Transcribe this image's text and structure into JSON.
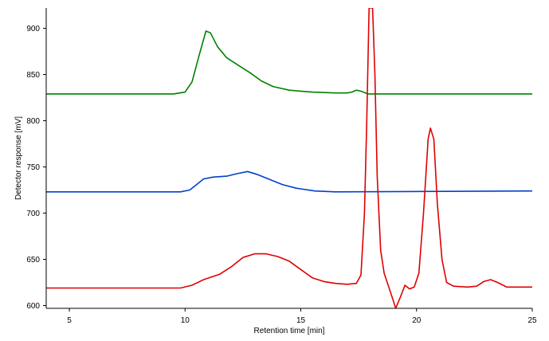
{
  "chart_data": {
    "type": "line",
    "title": "",
    "xlabel": "Retention time [min]",
    "ylabel": "Detector response [mV]",
    "xlim": [
      4,
      25
    ],
    "ylim": [
      597,
      922
    ],
    "x_ticks": [
      5,
      10,
      15,
      20,
      25
    ],
    "y_ticks": [
      600,
      650,
      700,
      750,
      800,
      850,
      900
    ],
    "x_tick_labels": [
      "5",
      "10",
      "15",
      "20",
      "25"
    ],
    "y_tick_labels": [
      "600",
      "650",
      "700",
      "750",
      "800",
      "850",
      "900"
    ],
    "grid": false,
    "legend": "none",
    "series": [
      {
        "color": "#008000",
        "points": [
          [
            4,
            829
          ],
          [
            9.5,
            829
          ],
          [
            10.0,
            831
          ],
          [
            10.3,
            842
          ],
          [
            10.6,
            870
          ],
          [
            10.9,
            897
          ],
          [
            11.1,
            895
          ],
          [
            11.4,
            880
          ],
          [
            11.8,
            868
          ],
          [
            12.3,
            860
          ],
          [
            12.8,
            852
          ],
          [
            13.3,
            843
          ],
          [
            13.8,
            837
          ],
          [
            14.5,
            833
          ],
          [
            15.5,
            831
          ],
          [
            16.5,
            830
          ],
          [
            17.0,
            830
          ],
          [
            17.2,
            831
          ],
          [
            17.4,
            833
          ],
          [
            17.6,
            832
          ],
          [
            17.9,
            829
          ],
          [
            18.2,
            829
          ],
          [
            19,
            829
          ],
          [
            25,
            829
          ]
        ]
      },
      {
        "color": "#0040d0",
        "points": [
          [
            4,
            723
          ],
          [
            9.8,
            723
          ],
          [
            10.2,
            725
          ],
          [
            10.5,
            731
          ],
          [
            10.8,
            737
          ],
          [
            11.2,
            739
          ],
          [
            11.8,
            740
          ],
          [
            12.3,
            743
          ],
          [
            12.7,
            745
          ],
          [
            13.1,
            742
          ],
          [
            13.6,
            737
          ],
          [
            14.2,
            731
          ],
          [
            14.8,
            727
          ],
          [
            15.6,
            724
          ],
          [
            16.5,
            723
          ],
          [
            25,
            724
          ]
        ]
      },
      {
        "color": "#e00000",
        "points": [
          [
            4,
            619
          ],
          [
            9.8,
            619
          ],
          [
            10.3,
            622
          ],
          [
            10.8,
            628
          ],
          [
            11.5,
            634
          ],
          [
            12.0,
            642
          ],
          [
            12.5,
            652
          ],
          [
            13.0,
            656
          ],
          [
            13.5,
            656
          ],
          [
            14.0,
            653
          ],
          [
            14.5,
            648
          ],
          [
            15.0,
            639
          ],
          [
            15.5,
            630
          ],
          [
            16.0,
            626
          ],
          [
            16.5,
            624
          ],
          [
            17.0,
            623
          ],
          [
            17.4,
            624
          ],
          [
            17.6,
            633
          ],
          [
            17.75,
            700
          ],
          [
            17.85,
            800
          ],
          [
            17.95,
            922
          ],
          [
            18.1,
            922
          ],
          [
            18.2,
            850
          ],
          [
            18.3,
            740
          ],
          [
            18.45,
            660
          ],
          [
            18.6,
            635
          ],
          [
            18.8,
            620
          ],
          [
            19.0,
            605
          ],
          [
            19.1,
            597
          ],
          [
            19.3,
            609
          ],
          [
            19.5,
            622
          ],
          [
            19.7,
            618
          ],
          [
            19.9,
            620
          ],
          [
            20.1,
            635
          ],
          [
            20.3,
            700
          ],
          [
            20.5,
            780
          ],
          [
            20.6,
            792
          ],
          [
            20.75,
            780
          ],
          [
            20.9,
            710
          ],
          [
            21.1,
            650
          ],
          [
            21.3,
            625
          ],
          [
            21.6,
            621
          ],
          [
            22.2,
            620
          ],
          [
            22.6,
            621
          ],
          [
            22.9,
            626
          ],
          [
            23.2,
            628
          ],
          [
            23.5,
            625
          ],
          [
            23.9,
            620
          ],
          [
            25,
            620
          ]
        ]
      }
    ]
  }
}
